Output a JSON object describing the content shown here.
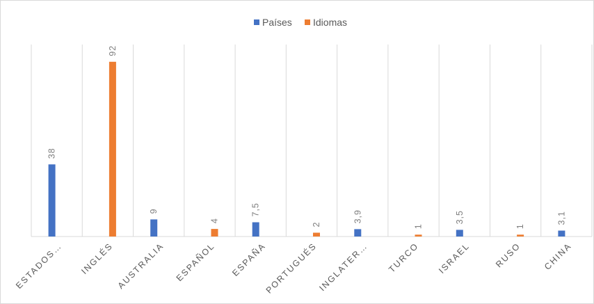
{
  "chart_data": {
    "type": "bar",
    "categories": [
      "ESTADOS…",
      "INGLÉS",
      "AUSTRALIA",
      "ESPAÑOL",
      "ESPAÑA",
      "PORTUGUÉS",
      "INGLATER…",
      "TURCO",
      "ISRAEL",
      "RUSO",
      "CHINA"
    ],
    "series": [
      {
        "name": "Países",
        "color": "#4472c4",
        "values": [
          38,
          null,
          9,
          null,
          7.5,
          null,
          3.9,
          null,
          3.5,
          null,
          3.1
        ]
      },
      {
        "name": "Idiomas",
        "color": "#ed7d31",
        "values": [
          null,
          92,
          null,
          4,
          null,
          2,
          null,
          1,
          null,
          1,
          null
        ]
      }
    ],
    "data_labels": [
      "38",
      "92",
      "9",
      "4",
      "7,5",
      "2",
      "3,9",
      "1",
      "3,5",
      "1",
      "3,1"
    ],
    "title": "",
    "xlabel": "",
    "ylabel": "",
    "ylim": [
      0,
      100
    ],
    "grid": "vertical",
    "legend": "top-center"
  }
}
